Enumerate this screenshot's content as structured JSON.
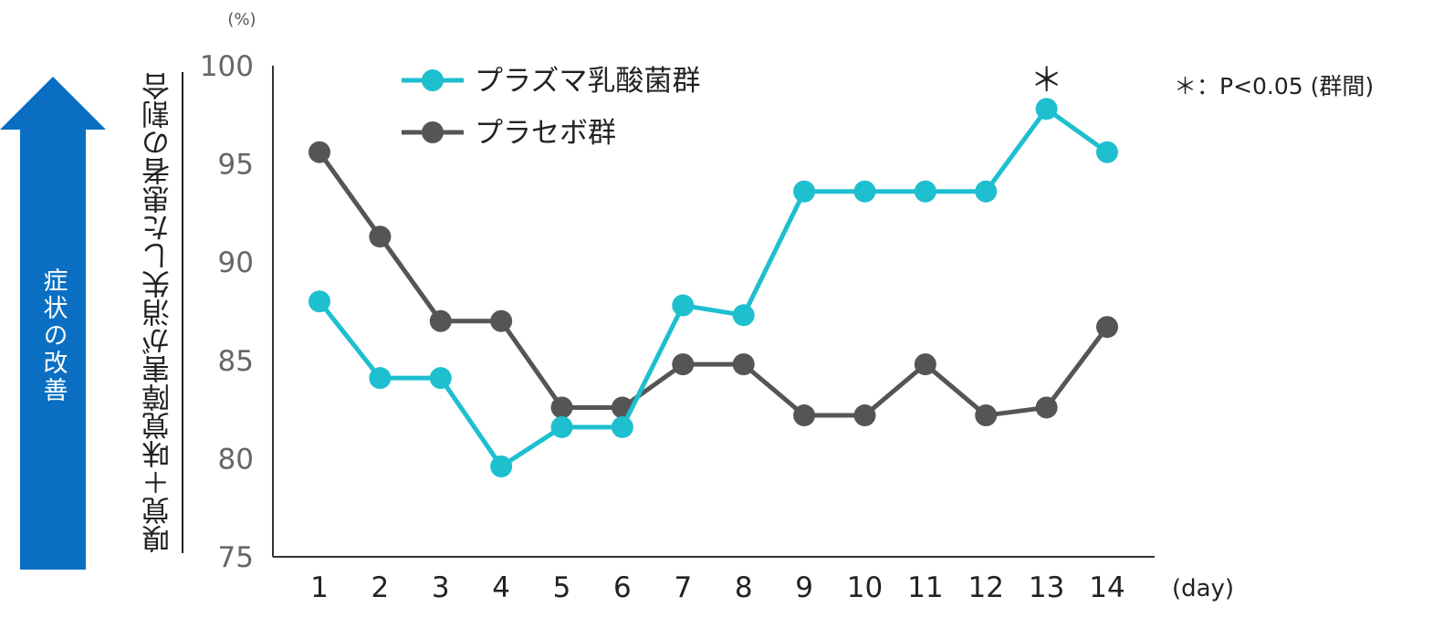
{
  "chart_data": {
    "type": "line",
    "ylabel": "嗅覚＋味覚障害が消失した患者の割合",
    "improvement_label": "症状の改善",
    "y_unit": "(%)",
    "x_unit": "(day)",
    "significance_note": "＊：P<0.05 (群間)",
    "ylim": [
      75,
      100
    ],
    "yticks": [
      75,
      80,
      85,
      90,
      95,
      100
    ],
    "x": [
      1,
      2,
      3,
      4,
      5,
      6,
      7,
      8,
      9,
      10,
      11,
      12,
      13,
      14
    ],
    "grid": false,
    "legend_position": "top-left",
    "series": [
      {
        "name": "プラズマ乳酸菌群",
        "color": "#1ebfcf",
        "values": [
          88.0,
          84.1,
          84.1,
          79.6,
          81.6,
          81.6,
          87.8,
          87.3,
          93.6,
          93.6,
          93.6,
          93.6,
          97.8,
          95.6
        ]
      },
      {
        "name": "プラセボ群",
        "color": "#555555",
        "values": [
          95.6,
          91.3,
          87.0,
          87.0,
          82.6,
          82.6,
          84.8,
          84.8,
          82.2,
          82.2,
          84.8,
          82.2,
          82.6,
          86.7
        ]
      }
    ],
    "annotations": [
      {
        "x": 13,
        "label": "＊"
      }
    ]
  }
}
